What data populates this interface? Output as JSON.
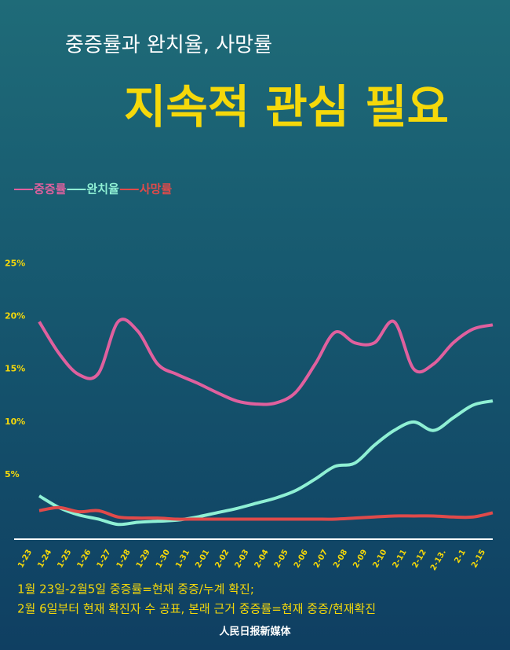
{
  "chart_data": {
    "type": "line",
    "title": "중증률과 완치율, 사망률",
    "subtitle": "지속적 관심 필요",
    "categories": [
      "1-23",
      "1-24",
      "1-25",
      "1-26",
      "1-27",
      "1-28",
      "1-29",
      "1-30",
      "1-31",
      "2-01",
      "2-02",
      "2-03",
      "2-04",
      "2-05",
      "2-06",
      "2-07",
      "2-08",
      "2-09",
      "2-10",
      "2-11",
      "2-12",
      "2-13.",
      "2-1",
      "2-15"
    ],
    "series": [
      {
        "name": "중증률",
        "color": "#e0609e",
        "values": [
          19.5,
          16.5,
          14.5,
          14.6,
          19.5,
          18.6,
          15.5,
          14.5,
          13.7,
          12.8,
          12.0,
          11.7,
          11.8,
          12.8,
          15.5,
          18.5,
          17.5,
          17.5,
          19.5,
          15.0,
          15.5,
          17.5,
          18.8,
          19.2
        ]
      },
      {
        "name": "완치율",
        "color": "#8ff0d4",
        "values": [
          3.0,
          1.9,
          1.2,
          0.8,
          0.3,
          0.5,
          0.6,
          0.7,
          1.0,
          1.4,
          1.8,
          2.3,
          2.8,
          3.5,
          4.6,
          5.8,
          6.1,
          7.8,
          9.2,
          10.0,
          9.2,
          10.4,
          11.6,
          12.0
        ]
      },
      {
        "name": "사망률",
        "color": "#e04a4a",
        "values": [
          1.6,
          1.9,
          1.5,
          1.6,
          1.0,
          0.9,
          0.9,
          0.8,
          0.8,
          0.8,
          0.8,
          0.8,
          0.8,
          0.8,
          0.8,
          0.8,
          0.9,
          1.0,
          1.1,
          1.1,
          1.1,
          1.0,
          1.0,
          1.4
        ]
      }
    ],
    "ylim": [
      -1.1,
      26
    ],
    "yticks": [
      {
        "value": 5,
        "label": "5%"
      },
      {
        "value": 10,
        "label": "10%"
      },
      {
        "value": 15,
        "label": "15%"
      },
      {
        "value": 20,
        "label": "20%"
      },
      {
        "value": 25,
        "label": "25%"
      }
    ],
    "grid": false,
    "notes": [
      "1월 23일-2월5일 중증률=현재 중증/누계 확진;",
      "2월 6일부터 현재 확진자 수 공표, 본래 근거 중증률=현재 중증/현재확진"
    ],
    "source": "人民日报新媒体"
  }
}
